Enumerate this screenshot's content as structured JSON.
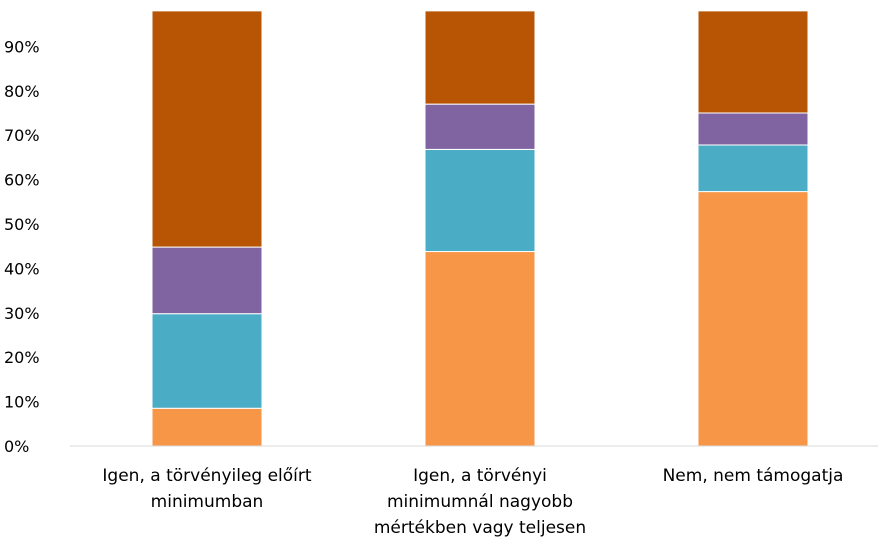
{
  "chart_data": {
    "type": "bar",
    "stacked": true,
    "categories": [
      [
        "Igen, a törvényileg előírt",
        "minimumban"
      ],
      [
        "Igen, a törvényi",
        "minimumnál nagyobb",
        "mértékben vagy teljesen"
      ],
      [
        "Nem, nem támogatja"
      ]
    ],
    "yticks": [
      "0%",
      "10%",
      "20%",
      "30%",
      "40%",
      "50%",
      "60%",
      "70%",
      "80%",
      "90%"
    ],
    "ylim": [
      0,
      100
    ],
    "grid": false,
    "legend": "none",
    "series": [
      {
        "values": [
          8.5,
          43.8,
          57.3
        ],
        "color": "#F79646"
      },
      {
        "values": [
          21.3,
          23.0,
          10.5
        ],
        "color": "#4BACC6"
      },
      {
        "values": [
          15.0,
          10.2,
          7.2
        ],
        "color": "#8064A2"
      },
      {
        "values": [
          53.2,
          21.0,
          23.0
        ],
        "color": "#B75504"
      }
    ]
  }
}
